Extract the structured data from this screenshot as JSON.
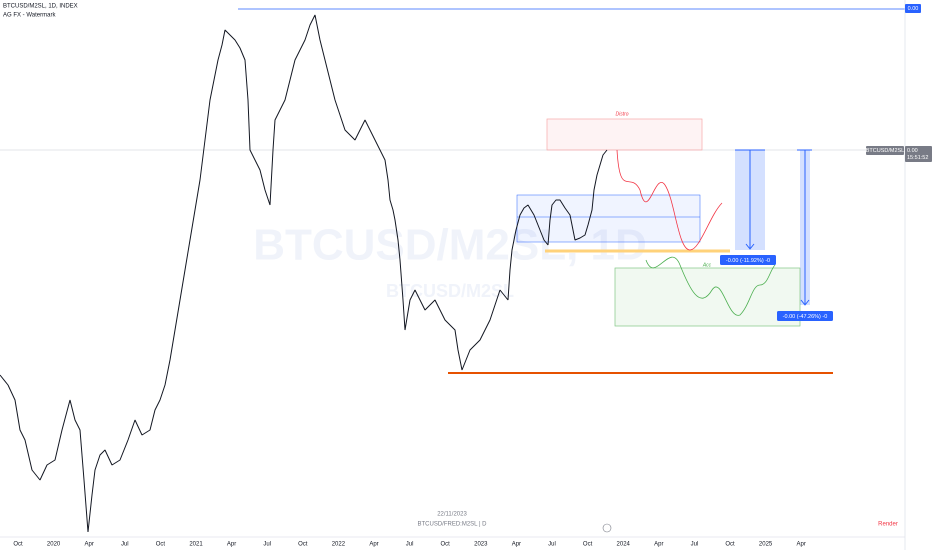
{
  "header": {
    "symbol": "BTCUSD/M2SL, 1D, INDEX",
    "indicator": "AG FX - Watermark"
  },
  "watermark": {
    "title": "BTCUSD/M2SL, 1D",
    "subtitle": "BTCUSD/M2SL"
  },
  "x_axis": [
    "Oct",
    "2020",
    "Apr",
    "Jul",
    "Oct",
    "2021",
    "Apr",
    "Jul",
    "Oct",
    "2022",
    "Apr",
    "Jul",
    "Oct",
    "2023",
    "Apr",
    "Jul",
    "Oct",
    "2024",
    "Apr",
    "Jul",
    "Oct",
    "2025",
    "Apr"
  ],
  "price_axis": {
    "top_label": "0.00",
    "symbol_label": "BTCUSD/M2SL",
    "last_price": "0.00",
    "countdown": "15:51:52"
  },
  "annotations": {
    "distro": "Distro",
    "acc": "Acc",
    "measure_1": "-0.00 (-11.92%) -0",
    "measure_2": "-0.00 (-47.26%) -0"
  },
  "footer": {
    "date": "22/11/2023",
    "source": "BTCUSD/FRED:M2SL | D",
    "render": "Render"
  }
}
